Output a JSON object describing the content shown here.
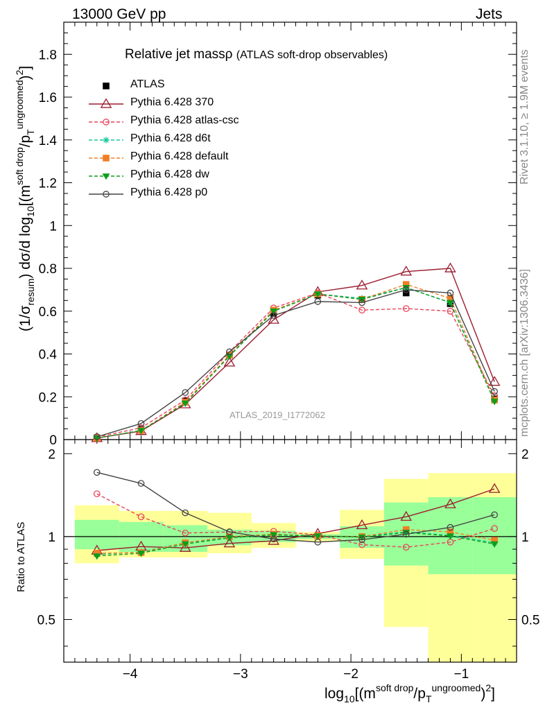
{
  "header": {
    "left": "13000 GeV pp",
    "right": "Jets"
  },
  "side_labels": {
    "top": "Rivet 3.1.10, ≥ 1.9M events",
    "bottom": "mcplots.cern.ch [arXiv:1306.3436]"
  },
  "analysis_tag": "ATLAS_2019_I1772062",
  "chart_data": [
    {
      "type": "line",
      "title": "Relative jet massρ",
      "subtitle": "(ATLAS soft-drop observables)",
      "ylabel": "(1/σresum) dσ/d log10[(msoft drop/pTungroomed)2]",
      "xlabel": "log10[(msoft drop/pTungroomed)2]",
      "xlim": [
        -4.6,
        -0.5
      ],
      "ylim": [
        0,
        1.95
      ],
      "x_ticks": [
        -4,
        -3,
        -2,
        -1
      ],
      "y_ticks": [
        0,
        0.2,
        0.4,
        0.6,
        0.8,
        1,
        1.2,
        1.4,
        1.6,
        1.8
      ],
      "legend_position": "top-left",
      "x": [
        -4.3,
        -3.9,
        -3.5,
        -3.1,
        -2.7,
        -2.3,
        -1.9,
        -1.5,
        -1.1,
        -0.7
      ],
      "series": [
        {
          "name": "ATLAS",
          "color": "#000000",
          "marker": "filled-square",
          "values": [
            0.008,
            0.048,
            0.18,
            0.395,
            0.59,
            0.675,
            0.655,
            0.685,
            0.635,
            0.19
          ]
        },
        {
          "name": "Pythia 6.428 370",
          "color": "#9b1c2e",
          "marker": "open-triangle",
          "values": [
            0.007,
            0.04,
            0.165,
            0.36,
            0.56,
            0.69,
            0.72,
            0.785,
            0.8,
            0.27
          ]
        },
        {
          "name": "Pythia 6.428 atlas-csc",
          "color": "#e8435a",
          "marker": "open-circle",
          "dashed": true,
          "values": [
            0.012,
            0.055,
            0.185,
            0.41,
            0.615,
            0.685,
            0.605,
            0.612,
            0.6,
            0.205
          ]
        },
        {
          "name": "Pythia 6.428 d6t",
          "color": "#18c7a0",
          "marker": "star",
          "dashed": true,
          "values": [
            0.007,
            0.043,
            0.17,
            0.39,
            0.6,
            0.68,
            0.66,
            0.71,
            0.64,
            0.18
          ]
        },
        {
          "name": "Pythia 6.428 default",
          "color": "#f07e26",
          "marker": "filled-square",
          "dashed": true,
          "values": [
            0.007,
            0.042,
            0.175,
            0.395,
            0.605,
            0.68,
            0.655,
            0.725,
            0.66,
            0.185
          ]
        },
        {
          "name": "Pythia 6.428 dw",
          "color": "#0c9e1c",
          "marker": "down-triangle",
          "dashed": true,
          "values": [
            0.007,
            0.042,
            0.17,
            0.39,
            0.6,
            0.68,
            0.655,
            0.71,
            0.64,
            0.178
          ]
        },
        {
          "name": "Pythia 6.428 p0",
          "color": "#444444",
          "marker": "open-circle",
          "values": [
            0.013,
            0.075,
            0.22,
            0.41,
            0.58,
            0.645,
            0.64,
            0.7,
            0.685,
            0.225
          ]
        }
      ]
    },
    {
      "type": "line",
      "ylabel": "Ratio to ATLAS",
      "xlabel": "log10[(msoft drop/pTungroomed)2]",
      "xlim": [
        -4.6,
        -0.5
      ],
      "ylim": [
        0.35,
        2.25
      ],
      "y_ticks": [
        0.5,
        1,
        2
      ],
      "y_scale": "log",
      "reference_line": 1,
      "bin_edges": [
        -4.5,
        -4.1,
        -3.7,
        -3.3,
        -2.9,
        -2.5,
        -2.1,
        -1.7,
        -1.3,
        -0.9,
        -0.5
      ],
      "uncertainty_bands": {
        "stat_color": "#99ff99",
        "total_color": "#ffff99",
        "stat_low": [
          0.9,
          0.88,
          0.88,
          0.93,
          0.955,
          0.98,
          0.91,
          0.785,
          0.73,
          0.73
        ],
        "stat_high": [
          1.15,
          1.13,
          1.1,
          1.06,
          1.05,
          1.02,
          1.09,
          1.33,
          1.39,
          1.39
        ],
        "total_low": [
          0.8,
          0.84,
          0.84,
          0.87,
          0.91,
          0.96,
          0.83,
          0.47,
          0.35,
          0.35
        ],
        "total_high": [
          1.3,
          1.24,
          1.24,
          1.22,
          1.12,
          1.04,
          1.25,
          1.62,
          1.7,
          1.7
        ]
      },
      "x": [
        -4.3,
        -3.9,
        -3.5,
        -3.1,
        -2.7,
        -2.3,
        -1.9,
        -1.5,
        -1.1,
        -0.7
      ],
      "series": [
        {
          "name": "Pythia 6.428 370",
          "color": "#9b1c2e",
          "marker": "open-triangle",
          "values": [
            0.89,
            0.92,
            0.91,
            0.945,
            0.965,
            1.025,
            1.1,
            1.18,
            1.31,
            1.49
          ]
        },
        {
          "name": "Pythia 6.428 atlas-csc",
          "color": "#e8435a",
          "marker": "open-circle",
          "dashed": true,
          "values": [
            1.43,
            1.18,
            1.03,
            1.04,
            1.045,
            1.015,
            0.935,
            0.915,
            0.955,
            1.07
          ]
        },
        {
          "name": "Pythia 6.428 d6t",
          "color": "#18c7a0",
          "marker": "star",
          "dashed": true,
          "values": [
            0.86,
            0.88,
            0.95,
            0.99,
            1.015,
            1.005,
            1.0,
            1.04,
            1.01,
            0.95
          ]
        },
        {
          "name": "Pythia 6.428 default",
          "color": "#f07e26",
          "marker": "filled-square",
          "dashed": true,
          "values": [
            0.87,
            0.875,
            0.95,
            1.0,
            1.02,
            1.005,
            1.0,
            1.06,
            1.04,
            0.97
          ]
        },
        {
          "name": "Pythia 6.428 dw",
          "color": "#0c9e1c",
          "marker": "down-triangle",
          "dashed": true,
          "values": [
            0.85,
            0.87,
            0.94,
            0.99,
            1.015,
            1.005,
            0.995,
            1.035,
            1.005,
            0.94
          ]
        },
        {
          "name": "Pythia 6.428 p0",
          "color": "#444444",
          "marker": "open-circle",
          "values": [
            1.71,
            1.56,
            1.22,
            1.04,
            0.98,
            0.955,
            0.975,
            1.02,
            1.08,
            1.2
          ]
        }
      ]
    }
  ]
}
